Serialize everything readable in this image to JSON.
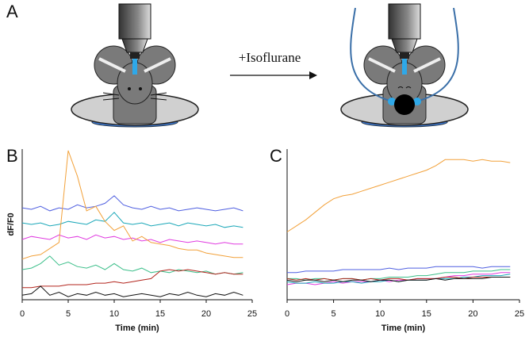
{
  "panel_a": {
    "label": "A",
    "annotation": "+Isoflurane"
  },
  "chart_data": [
    {
      "type": "line",
      "label": "B",
      "xlabel": "Time (min)",
      "ylabel": "dF/F0",
      "x": [
        0,
        1,
        2,
        3,
        4,
        5,
        6,
        7,
        8,
        9,
        10,
        11,
        12,
        13,
        14,
        15,
        16,
        17,
        18,
        19,
        20,
        21,
        22,
        23,
        24
      ],
      "xlim": [
        0,
        25
      ],
      "xticks": [
        0,
        5,
        10,
        15,
        20,
        25
      ],
      "ylim": [
        0,
        10
      ],
      "series": [
        {
          "color": "#4f5fe0",
          "values": [
            6.1,
            6.0,
            6.2,
            5.9,
            6.1,
            6.0,
            6.3,
            6.1,
            6.2,
            6.4,
            6.9,
            6.3,
            6.1,
            6.0,
            6.2,
            6.0,
            6.1,
            5.9,
            6.0,
            6.1,
            6.0,
            5.9,
            6.0,
            6.1,
            5.9
          ]
        },
        {
          "color": "#1aa7b8",
          "values": [
            5.1,
            5.0,
            5.1,
            4.9,
            5.0,
            5.2,
            5.1,
            5.0,
            5.3,
            5.2,
            5.8,
            5.1,
            5.0,
            5.1,
            4.9,
            5.0,
            5.1,
            4.9,
            5.1,
            5.0,
            4.9,
            5.0,
            4.8,
            4.9,
            4.8
          ]
        },
        {
          "color": "#e03be0",
          "values": [
            4.0,
            4.2,
            4.1,
            4.0,
            4.3,
            4.1,
            4.2,
            4.0,
            4.3,
            4.1,
            4.2,
            4.0,
            4.1,
            3.9,
            4.0,
            3.8,
            4.0,
            3.9,
            3.8,
            3.9,
            3.8,
            3.7,
            3.8,
            3.7,
            3.7
          ]
        },
        {
          "color": "#f2a13a",
          "values": [
            2.7,
            2.9,
            3.0,
            3.4,
            3.8,
            9.9,
            8.2,
            5.9,
            6.2,
            5.2,
            4.6,
            4.9,
            3.9,
            4.2,
            3.8,
            3.7,
            3.6,
            3.4,
            3.3,
            3.3,
            3.1,
            3.0,
            2.9,
            2.8,
            2.8
          ]
        },
        {
          "color": "#3cbf8a",
          "values": [
            2.0,
            2.1,
            2.4,
            2.9,
            2.3,
            2.5,
            2.2,
            2.1,
            2.3,
            2.0,
            2.4,
            2.0,
            1.9,
            2.1,
            1.8,
            1.9,
            1.8,
            2.0,
            1.9,
            1.8,
            1.9,
            1.7,
            1.8,
            1.7,
            1.8
          ]
        },
        {
          "color": "#b3261e",
          "values": [
            0.8,
            0.8,
            0.9,
            0.9,
            0.9,
            1.0,
            1.0,
            1.0,
            1.1,
            1.1,
            1.2,
            1.1,
            1.2,
            1.3,
            1.4,
            1.9,
            2.0,
            1.9,
            2.0,
            1.9,
            1.8,
            1.7,
            1.8,
            1.7,
            1.7
          ]
        },
        {
          "color": "#111111",
          "values": [
            0.3,
            0.4,
            0.9,
            0.3,
            0.5,
            0.2,
            0.4,
            0.3,
            0.5,
            0.3,
            0.4,
            0.2,
            0.3,
            0.4,
            0.3,
            0.2,
            0.4,
            0.3,
            0.5,
            0.3,
            0.2,
            0.4,
            0.3,
            0.5,
            0.3
          ]
        }
      ]
    },
    {
      "type": "line",
      "label": "C",
      "xlabel": "Time (min)",
      "x": [
        0,
        1,
        2,
        3,
        4,
        5,
        6,
        7,
        8,
        9,
        10,
        11,
        12,
        13,
        14,
        15,
        16,
        17,
        18,
        19,
        20,
        21,
        22,
        23,
        24
      ],
      "xlim": [
        0,
        25
      ],
      "xticks": [
        0,
        5,
        10,
        15,
        20,
        25
      ],
      "ylim": [
        0,
        10
      ],
      "series": [
        {
          "color": "#f2a13a",
          "values": [
            4.5,
            4.9,
            5.3,
            5.8,
            6.3,
            6.7,
            6.9,
            7.0,
            7.2,
            7.4,
            7.6,
            7.8,
            8.0,
            8.2,
            8.4,
            8.6,
            8.9,
            9.3,
            9.3,
            9.3,
            9.2,
            9.3,
            9.2,
            9.2,
            9.1
          ]
        },
        {
          "color": "#4f5fe0",
          "values": [
            1.8,
            1.8,
            1.9,
            1.9,
            1.9,
            1.9,
            2.0,
            2.0,
            2.0,
            2.0,
            2.0,
            2.1,
            2.0,
            2.1,
            2.1,
            2.1,
            2.2,
            2.2,
            2.2,
            2.2,
            2.2,
            2.1,
            2.2,
            2.2,
            2.2
          ]
        },
        {
          "color": "#3cbf8a",
          "values": [
            1.4,
            1.4,
            1.3,
            1.4,
            1.4,
            1.3,
            1.4,
            1.4,
            1.3,
            1.4,
            1.4,
            1.5,
            1.5,
            1.5,
            1.6,
            1.6,
            1.7,
            1.8,
            1.8,
            1.8,
            1.9,
            1.9,
            1.9,
            2.0,
            2.0
          ]
        },
        {
          "color": "#e03be0",
          "values": [
            1.0,
            1.1,
            1.1,
            1.0,
            1.1,
            1.2,
            1.1,
            1.2,
            1.2,
            1.2,
            1.3,
            1.2,
            1.3,
            1.3,
            1.4,
            1.4,
            1.4,
            1.5,
            1.6,
            1.6,
            1.7,
            1.7,
            1.7,
            1.8,
            1.8
          ]
        },
        {
          "color": "#1aa7b8",
          "values": [
            1.2,
            1.1,
            1.1,
            1.2,
            1.1,
            1.1,
            1.2,
            1.2,
            1.1,
            1.2,
            1.2,
            1.3,
            1.2,
            1.3,
            1.3,
            1.3,
            1.4,
            1.4,
            1.4,
            1.5,
            1.5,
            1.6,
            1.6,
            1.6,
            1.7
          ]
        },
        {
          "color": "#b3261e",
          "values": [
            1.4,
            1.3,
            1.4,
            1.3,
            1.4,
            1.3,
            1.4,
            1.4,
            1.3,
            1.4,
            1.3,
            1.4,
            1.4,
            1.3,
            1.4,
            1.4,
            1.4,
            1.5,
            1.5,
            1.4,
            1.5,
            1.5,
            1.5,
            1.5,
            1.5
          ]
        },
        {
          "color": "#111111",
          "values": [
            1.3,
            1.2,
            1.3,
            1.3,
            1.2,
            1.3,
            1.2,
            1.3,
            1.3,
            1.2,
            1.3,
            1.3,
            1.2,
            1.3,
            1.3,
            1.3,
            1.4,
            1.3,
            1.4,
            1.4,
            1.4,
            1.4,
            1.5,
            1.5,
            1.5
          ]
        }
      ]
    }
  ]
}
